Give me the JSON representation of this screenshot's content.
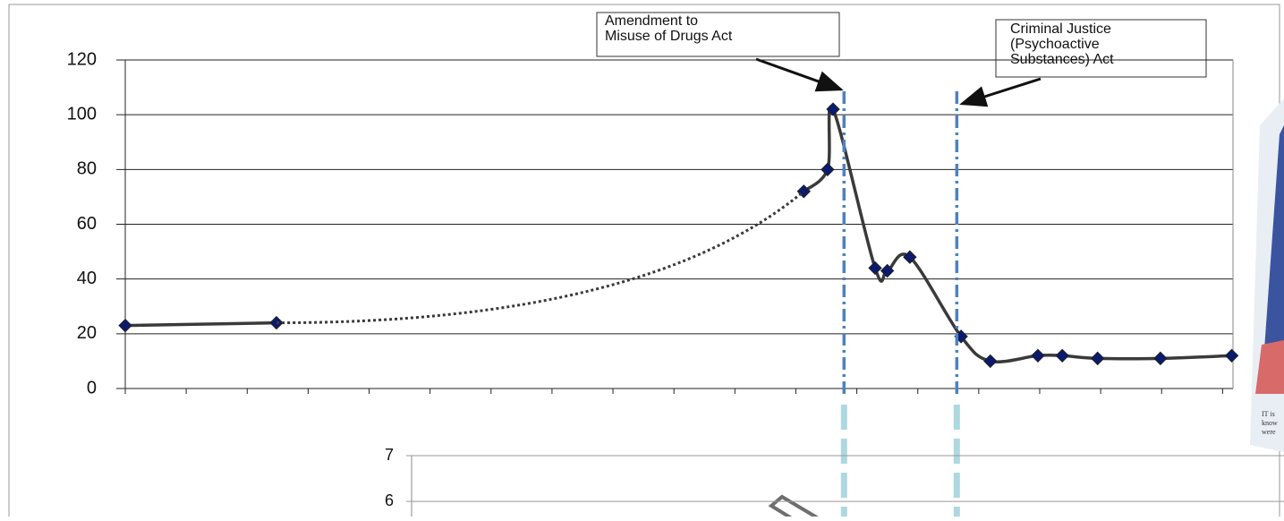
{
  "chart_data": [
    {
      "type": "line",
      "xlim": [
        0,
        18.2
      ],
      "ylim": [
        0,
        120
      ],
      "yticks": [
        0,
        20,
        40,
        60,
        80,
        100,
        120
      ],
      "grid": true,
      "series": [
        {
          "color": "#3a3a3a",
          "style": "solid",
          "markers": true,
          "x": [
            0,
            2.48,
            null,
            11.13,
            11.52,
            11.61,
            12.3,
            12.5,
            12.87,
            13.71,
            14.19,
            14.97,
            15.37,
            15.95,
            16.98,
            18.15
          ],
          "values": [
            23,
            24,
            null,
            72,
            80,
            102,
            44,
            43,
            48,
            19,
            10,
            12,
            12,
            11,
            11,
            12
          ]
        },
        {
          "color": "#3a3a3a",
          "style": "dotted",
          "markers": false,
          "x": [
            2.48,
            11.13
          ],
          "values": [
            24,
            72
          ]
        }
      ],
      "annotations": [
        {
          "text": [
            "Amendment to",
            "Misuse of Drugs Act"
          ],
          "x": 11.79,
          "color": "#4f81bd"
        },
        {
          "text": [
            "Criminal Justice",
            "(Psychoactive",
            "Substances) Act"
          ],
          "x": 13.64,
          "color": "#4f81bd"
        }
      ]
    },
    {
      "type": "line",
      "ylim": [
        5.67,
        7
      ],
      "yticks": [
        6,
        7
      ],
      "grid": true,
      "series": []
    }
  ],
  "clipping": {
    "lines": [
      "IT is",
      "know",
      "were"
    ]
  }
}
